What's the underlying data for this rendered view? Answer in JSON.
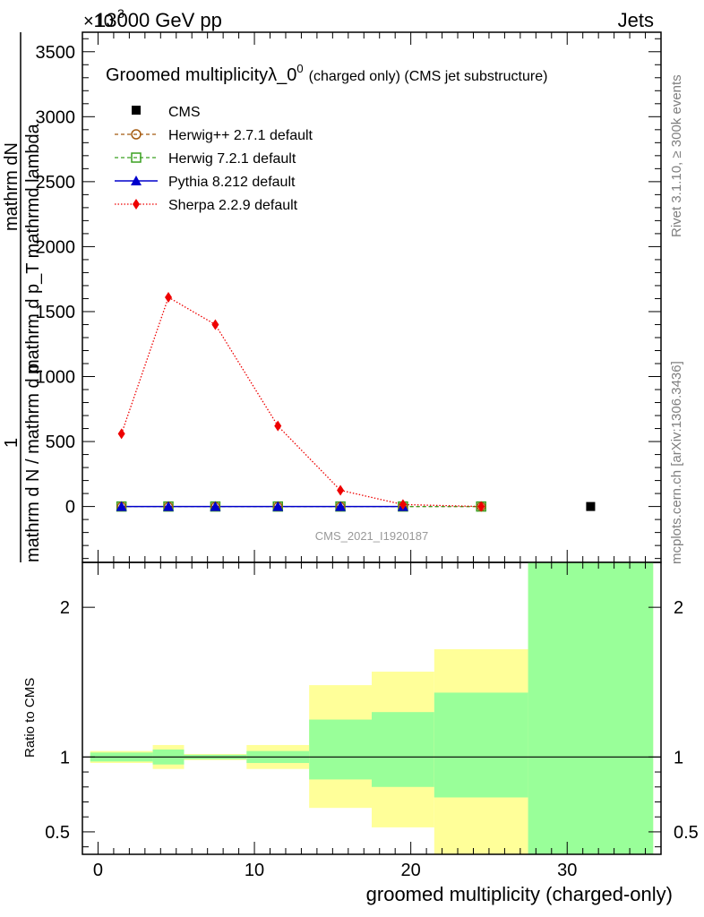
{
  "header": {
    "left": "13000 GeV pp",
    "right": "Jets",
    "exponent": "×10",
    "exponent_power": "3"
  },
  "side_labels": {
    "rivet": "Rivet 3.1.10, ≥ 300k events",
    "mcplots": "mcplots.cern.ch [arXiv:1306.3436]"
  },
  "colors": {
    "herwigpp": "#a55a10",
    "herwig7": "#3aa020",
    "pythia": "#0000cc",
    "sherpa": "#ee0000",
    "band_outer": "#ffff99",
    "band_inner": "#99ff99"
  },
  "chart_data": [
    {
      "type": "line",
      "title": "Groomed multiplicityλ_0",
      "title_sup": "0",
      "title_suffix": "(charged only) (CMS jet substructure)",
      "ylabel_num": "1",
      "ylabel_den": "mathrm d N / mathrm d p",
      "ylabel_right": "mathrm dN",
      "ylabel_right_den": "mathrm d p_T mathrmd lambda",
      "xlabel": "groomed multiplicity (charged-only)",
      "watermark": "CMS_2021_I1920187",
      "xlim": [
        -1,
        36
      ],
      "ylim": [
        -430,
        3650
      ],
      "yticks": [
        0,
        500,
        1000,
        1500,
        2000,
        2500,
        3000,
        3500
      ],
      "ytick_labels": [
        "0",
        "500",
        "1000",
        "1500",
        "2000",
        "2500",
        "3000",
        "3500"
      ],
      "legend": {
        "position": "top-left",
        "entries": [
          {
            "id": "cms",
            "label": "CMS"
          },
          {
            "id": "herwigpp",
            "label": "Herwig++ 2.7.1 default"
          },
          {
            "id": "herwig7",
            "label": "Herwig 7.2.1 default"
          },
          {
            "id": "pythia",
            "label": "Pythia 8.212 default"
          },
          {
            "id": "sherpa",
            "label": "Sherpa 2.2.9 default"
          }
        ]
      },
      "series": [
        {
          "id": "cms",
          "name": "CMS",
          "x": [
            31.5
          ],
          "y": [
            0
          ]
        },
        {
          "id": "herwigpp",
          "name": "Herwig++ 2.7.1 default",
          "x": [
            1.5,
            4.5,
            7.5,
            11.5,
            15.5,
            19.5,
            24.5
          ],
          "y": [
            0,
            0,
            0,
            0,
            0,
            0,
            0
          ]
        },
        {
          "id": "herwig7",
          "name": "Herwig 7.2.1 default",
          "x": [
            1.5,
            4.5,
            7.5,
            11.5,
            15.5,
            19.5,
            24.5
          ],
          "y": [
            0,
            0,
            0,
            0,
            0,
            0,
            0
          ]
        },
        {
          "id": "pythia",
          "name": "Pythia 8.212 default",
          "x": [
            1.5,
            4.5,
            7.5,
            11.5,
            15.5,
            19.5
          ],
          "y": [
            0,
            0,
            0,
            0,
            0,
            0
          ]
        },
        {
          "id": "sherpa",
          "name": "Sherpa 2.2.9 default",
          "x": [
            1.5,
            4.5,
            7.5,
            11.5,
            15.5,
            19.5,
            24.5
          ],
          "y": [
            560,
            1610,
            1400,
            620,
            125,
            15,
            0
          ]
        }
      ]
    },
    {
      "type": "area",
      "ylabel": "Ratio to CMS",
      "xlabel": "groomed multiplicity (charged-only)",
      "xlim": [
        -1,
        36
      ],
      "ylim": [
        0.35,
        2.3
      ],
      "reference_line": 1,
      "yticks": [
        0.5,
        1,
        2
      ],
      "ytick_labels": [
        "0.5",
        "1",
        "2"
      ],
      "xticks": [
        0,
        10,
        20,
        30
      ],
      "xtick_labels": [
        "0",
        "10",
        "20",
        "30"
      ],
      "bins": [
        {
          "x0": -0.5,
          "x1": 3.5,
          "outer": [
            0.96,
            1.04
          ],
          "inner": [
            0.97,
            1.03
          ]
        },
        {
          "x0": 3.5,
          "x1": 5.5,
          "outer": [
            0.92,
            1.08
          ],
          "inner": [
            0.95,
            1.05
          ]
        },
        {
          "x0": 5.5,
          "x1": 9.5,
          "outer": [
            0.98,
            1.02
          ],
          "inner": [
            0.985,
            1.015
          ]
        },
        {
          "x0": 9.5,
          "x1": 13.5,
          "outer": [
            0.92,
            1.08
          ],
          "inner": [
            0.96,
            1.04
          ]
        },
        {
          "x0": 13.5,
          "x1": 17.5,
          "outer": [
            0.66,
            1.48
          ],
          "inner": [
            0.85,
            1.25
          ]
        },
        {
          "x0": 17.5,
          "x1": 21.5,
          "outer": [
            0.53,
            1.57
          ],
          "inner": [
            0.8,
            1.3
          ]
        },
        {
          "x0": 21.5,
          "x1": 27.5,
          "outer": [
            0.35,
            1.72
          ],
          "inner": [
            0.73,
            1.43
          ]
        },
        {
          "x0": 27.5,
          "x1": 35.5,
          "outer": [
            0.35,
            2.3
          ],
          "inner": [
            0.35,
            2.3
          ]
        }
      ]
    }
  ]
}
